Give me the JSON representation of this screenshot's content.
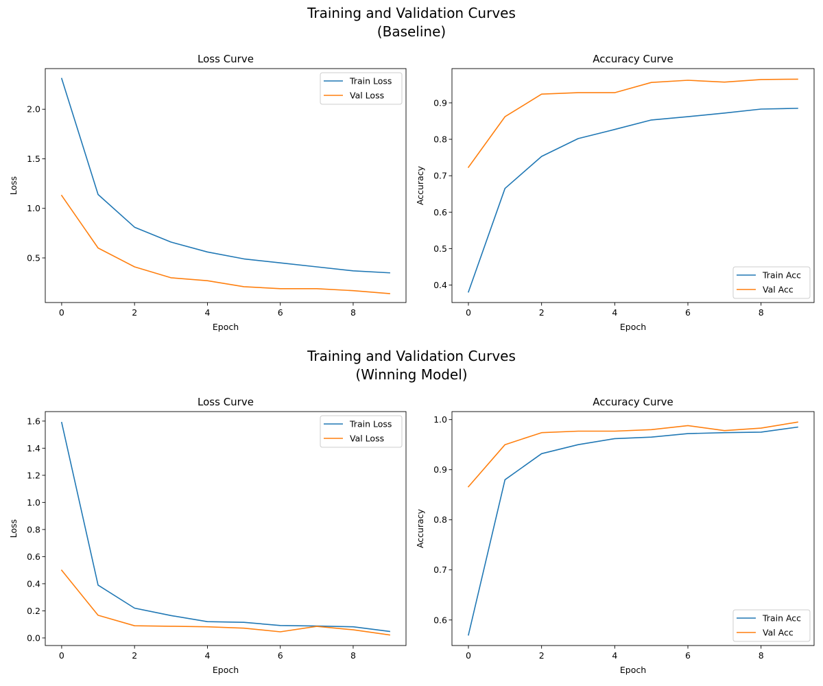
{
  "sections": [
    {
      "title_line1": "Training and Validation Curves",
      "title_line2": "(Baseline)"
    },
    {
      "title_line1": "Training and Validation Curves",
      "title_line2": "(Winning Model)"
    }
  ],
  "colors": {
    "train": "#1f77b4",
    "val": "#ff7f0e"
  },
  "chart_data": [
    {
      "type": "line",
      "section": "Baseline",
      "title": "Loss Curve",
      "xlabel": "Epoch",
      "ylabel": "Loss",
      "x": [
        0,
        1,
        2,
        3,
        4,
        5,
        6,
        7,
        8,
        9
      ],
      "xlim": [
        -0.45,
        9.45
      ],
      "ylim": [
        0.05,
        2.41
      ],
      "xticks": [
        0,
        2,
        4,
        6,
        8
      ],
      "yticks": [
        0.5,
        1.0,
        1.5,
        2.0
      ],
      "ytick_labels": [
        "0.5",
        "1.0",
        "1.5",
        "2.0"
      ],
      "legend": "top-right",
      "series": [
        {
          "name": "Train Loss",
          "color": "#1f77b4",
          "values": [
            2.31,
            1.14,
            0.81,
            0.66,
            0.56,
            0.49,
            0.45,
            0.41,
            0.37,
            0.35
          ]
        },
        {
          "name": "Val Loss",
          "color": "#ff7f0e",
          "values": [
            1.13,
            0.6,
            0.41,
            0.3,
            0.27,
            0.21,
            0.19,
            0.19,
            0.17,
            0.14
          ]
        }
      ]
    },
    {
      "type": "line",
      "section": "Baseline",
      "title": "Accuracy Curve",
      "xlabel": "Epoch",
      "ylabel": "Accuracy",
      "x": [
        0,
        1,
        2,
        3,
        4,
        5,
        6,
        7,
        8,
        9
      ],
      "xlim": [
        -0.45,
        9.45
      ],
      "ylim": [
        0.352,
        0.994
      ],
      "xticks": [
        0,
        2,
        4,
        6,
        8
      ],
      "yticks": [
        0.4,
        0.5,
        0.6,
        0.7,
        0.8,
        0.9
      ],
      "ytick_labels": [
        "0.4",
        "0.5",
        "0.6",
        "0.7",
        "0.8",
        "0.9"
      ],
      "legend": "bottom-right",
      "series": [
        {
          "name": "Train Acc",
          "color": "#1f77b4",
          "values": [
            0.381,
            0.665,
            0.753,
            0.802,
            0.827,
            0.853,
            0.862,
            0.872,
            0.883,
            0.885
          ]
        },
        {
          "name": "Val Acc",
          "color": "#ff7f0e",
          "values": [
            0.723,
            0.862,
            0.924,
            0.928,
            0.928,
            0.956,
            0.962,
            0.957,
            0.964,
            0.965
          ]
        }
      ]
    },
    {
      "type": "line",
      "section": "Winning Model",
      "title": "Loss Curve",
      "xlabel": "Epoch",
      "ylabel": "Loss",
      "x": [
        0,
        1,
        2,
        3,
        4,
        5,
        6,
        7,
        8,
        9
      ],
      "xlim": [
        -0.45,
        9.45
      ],
      "ylim": [
        -0.056,
        1.67
      ],
      "xticks": [
        0,
        2,
        4,
        6,
        8
      ],
      "yticks": [
        0.0,
        0.2,
        0.4,
        0.6,
        0.8,
        1.0,
        1.2,
        1.4,
        1.6
      ],
      "ytick_labels": [
        "0.0",
        "0.2",
        "0.4",
        "0.6",
        "0.8",
        "1.0",
        "1.2",
        "1.4",
        "1.6"
      ],
      "legend": "top-right",
      "series": [
        {
          "name": "Train Loss",
          "color": "#1f77b4",
          "values": [
            1.59,
            0.39,
            0.22,
            0.165,
            0.12,
            0.115,
            0.092,
            0.088,
            0.082,
            0.048
          ]
        },
        {
          "name": "Val Loss",
          "color": "#ff7f0e",
          "values": [
            0.5,
            0.167,
            0.09,
            0.086,
            0.082,
            0.072,
            0.045,
            0.085,
            0.06,
            0.022
          ]
        }
      ]
    },
    {
      "type": "line",
      "section": "Winning Model",
      "title": "Accuracy Curve",
      "xlabel": "Epoch",
      "ylabel": "Accuracy",
      "x": [
        0,
        1,
        2,
        3,
        4,
        5,
        6,
        7,
        8,
        9
      ],
      "xlim": [
        -0.45,
        9.45
      ],
      "ylim": [
        0.549,
        1.016
      ],
      "xticks": [
        0,
        2,
        4,
        6,
        8
      ],
      "yticks": [
        0.6,
        0.7,
        0.8,
        0.9,
        1.0
      ],
      "ytick_labels": [
        "0.6",
        "0.7",
        "0.8",
        "0.9",
        "1.0"
      ],
      "legend": "bottom-right",
      "series": [
        {
          "name": "Train Acc",
          "color": "#1f77b4",
          "values": [
            0.57,
            0.88,
            0.932,
            0.95,
            0.962,
            0.965,
            0.972,
            0.974,
            0.975,
            0.985
          ]
        },
        {
          "name": "Val Acc",
          "color": "#ff7f0e",
          "values": [
            0.866,
            0.95,
            0.974,
            0.977,
            0.977,
            0.98,
            0.988,
            0.978,
            0.983,
            0.995
          ]
        }
      ]
    }
  ]
}
